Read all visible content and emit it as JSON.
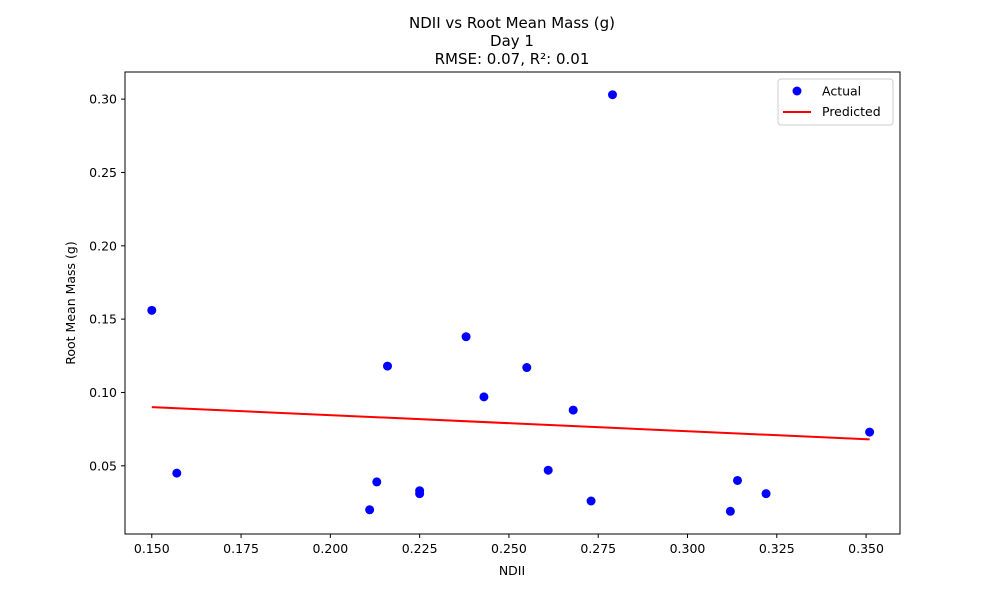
{
  "chart_data": {
    "type": "scatter",
    "title_lines": [
      "NDII vs Root Mean Mass (g)",
      "Day 1",
      "RMSE: 0.07, R²: 0.01"
    ],
    "xlabel": "NDII",
    "ylabel": "Root Mean Mass (g)",
    "xlim": [
      0.1425,
      0.3595
    ],
    "ylim": [
      0.0035,
      0.3185
    ],
    "xticks": [
      0.15,
      0.175,
      0.2,
      0.225,
      0.25,
      0.275,
      0.3,
      0.325,
      0.35
    ],
    "xtick_labels": [
      "0.150",
      "0.175",
      "0.200",
      "0.225",
      "0.250",
      "0.275",
      "0.300",
      "0.325",
      "0.350"
    ],
    "yticks": [
      0.05,
      0.1,
      0.15,
      0.2,
      0.25,
      0.3
    ],
    "ytick_labels": [
      "0.05",
      "0.10",
      "0.15",
      "0.20",
      "0.25",
      "0.30"
    ],
    "grid": false,
    "legend_position": "top-right",
    "series": [
      {
        "name": "Actual",
        "kind": "scatter",
        "color": "#0000ff",
        "points": [
          {
            "x": 0.15,
            "y": 0.156
          },
          {
            "x": 0.157,
            "y": 0.045
          },
          {
            "x": 0.211,
            "y": 0.02
          },
          {
            "x": 0.213,
            "y": 0.039
          },
          {
            "x": 0.216,
            "y": 0.118
          },
          {
            "x": 0.225,
            "y": 0.033
          },
          {
            "x": 0.225,
            "y": 0.031
          },
          {
            "x": 0.238,
            "y": 0.138
          },
          {
            "x": 0.243,
            "y": 0.097
          },
          {
            "x": 0.255,
            "y": 0.117
          },
          {
            "x": 0.261,
            "y": 0.047
          },
          {
            "x": 0.268,
            "y": 0.088
          },
          {
            "x": 0.273,
            "y": 0.026
          },
          {
            "x": 0.279,
            "y": 0.303
          },
          {
            "x": 0.312,
            "y": 0.019
          },
          {
            "x": 0.314,
            "y": 0.04
          },
          {
            "x": 0.322,
            "y": 0.031
          },
          {
            "x": 0.351,
            "y": 0.073
          }
        ]
      },
      {
        "name": "Predicted",
        "kind": "line",
        "color": "#ff0000",
        "points": [
          {
            "x": 0.15,
            "y": 0.09
          },
          {
            "x": 0.351,
            "y": 0.068
          }
        ]
      }
    ]
  }
}
